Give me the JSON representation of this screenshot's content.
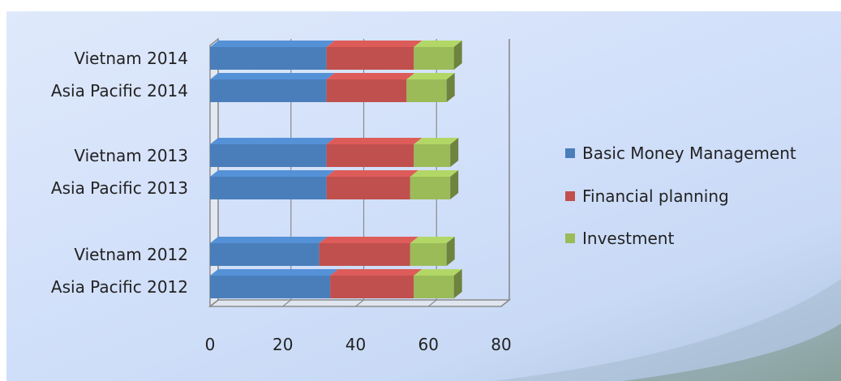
{
  "chart_data": {
    "type": "bar",
    "orientation": "horizontal",
    "stacked": true,
    "style": "3d",
    "categories": [
      "Vietnam 2014",
      "Asia Pacific 2014",
      "Vietnam 2013",
      "Asia Pacific 2013",
      "Vietnam 2012",
      "Asia Pacific 2012"
    ],
    "series": [
      {
        "name": "Basic Money Management",
        "color": "#4a7ebb",
        "values": [
          32,
          32,
          32,
          32,
          30,
          33
        ]
      },
      {
        "name": "Financial planning",
        "color": "#c0504d",
        "values": [
          24,
          22,
          24,
          23,
          25,
          23
        ]
      },
      {
        "name": "Investment",
        "color": "#9bbb59",
        "values": [
          11,
          11,
          10,
          11,
          10,
          11
        ]
      }
    ],
    "xlim": [
      0,
      80
    ],
    "xticks": [
      "0",
      "20",
      "40",
      "60",
      "80"
    ],
    "grid": true,
    "legend_position": "right"
  }
}
